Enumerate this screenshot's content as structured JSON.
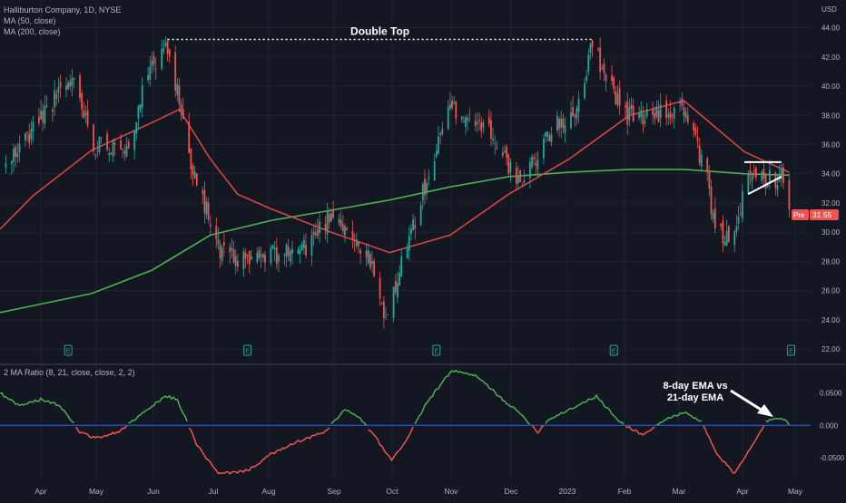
{
  "header": {
    "symbol_line": "Halliburton Company, 1D, NYSE",
    "ma50_label": "MA (50, close)",
    "ma200_label": "MA (200, close)",
    "currency": "USD"
  },
  "indicator": {
    "label": "2 MA Ratio (8, 21, close, close, 2, 2)"
  },
  "price_badge": {
    "prefix": "Pre",
    "value": "31.55"
  },
  "annotations": {
    "double_top": "Double Top",
    "ema_note_line1": "8-day EMA vs",
    "ema_note_line2": "21-day EMA"
  },
  "colors": {
    "background": "#131722",
    "grid": "#1f2330",
    "up": "#26a69a",
    "down": "#ef5350",
    "ma50": "#d84444",
    "ma200": "#4caf50",
    "ratio_pos": "#4caf50",
    "ratio_neg": "#f05252",
    "zero_line": "#2962ff"
  },
  "chart_data": [
    {
      "type": "candlestick",
      "title": "Halliburton Company, 1D, NYSE",
      "x_tick_labels": [
        "Apr",
        "May",
        "Jun",
        "Jul",
        "Aug",
        "Sep",
        "Oct",
        "Nov",
        "Dec",
        "2023",
        "Feb",
        "Mar",
        "Apr",
        "May"
      ],
      "y_tick_labels": [
        "22.00",
        "24.00",
        "26.00",
        "28.00",
        "30.00",
        "32.00",
        "34.00",
        "36.00",
        "38.00",
        "40.00",
        "42.00",
        "44.00"
      ],
      "ylim": [
        21.2,
        45.4
      ],
      "grid": true,
      "close_key_points": [
        {
          "date": "2022-03-18",
          "value": 34.5
        },
        {
          "date": "2022-03-29",
          "value": 36.5
        },
        {
          "date": "2022-04-08",
          "value": 38.5
        },
        {
          "date": "2022-04-22",
          "value": 40.5
        },
        {
          "date": "2022-05-02",
          "value": 36.0
        },
        {
          "date": "2022-05-20",
          "value": 36.0
        },
        {
          "date": "2022-05-27",
          "value": 39.5
        },
        {
          "date": "2022-06-08",
          "value": 43.5
        },
        {
          "date": "2022-06-21",
          "value": 35.0
        },
        {
          "date": "2022-07-06",
          "value": 28.5
        },
        {
          "date": "2022-07-18",
          "value": 28.0
        },
        {
          "date": "2022-08-04",
          "value": 28.5
        },
        {
          "date": "2022-08-19",
          "value": 29.0
        },
        {
          "date": "2022-09-02",
          "value": 31.5
        },
        {
          "date": "2022-09-21",
          "value": 28.0
        },
        {
          "date": "2022-09-29",
          "value": 23.8
        },
        {
          "date": "2022-10-04",
          "value": 26.5
        },
        {
          "date": "2022-10-20",
          "value": 33.5
        },
        {
          "date": "2022-11-01",
          "value": 38.5
        },
        {
          "date": "2022-11-22",
          "value": 37.0
        },
        {
          "date": "2022-12-07",
          "value": 33.0
        },
        {
          "date": "2022-12-20",
          "value": 36.5
        },
        {
          "date": "2023-01-05",
          "value": 38.5
        },
        {
          "date": "2023-01-13",
          "value": 42.8
        },
        {
          "date": "2023-01-30",
          "value": 38.0
        },
        {
          "date": "2023-02-15",
          "value": 38.0
        },
        {
          "date": "2023-03-01",
          "value": 38.5
        },
        {
          "date": "2023-03-13",
          "value": 33.5
        },
        {
          "date": "2023-03-17",
          "value": 30.0
        },
        {
          "date": "2023-03-24",
          "value": 29.5
        },
        {
          "date": "2023-04-04",
          "value": 33.7
        },
        {
          "date": "2023-04-20",
          "value": 33.7
        },
        {
          "date": "2023-04-24",
          "value": 31.55
        }
      ],
      "series": [
        {
          "name": "MA (50, close)",
          "points": [
            {
              "date": "2022-03-15",
              "value": 30.2
            },
            {
              "date": "2022-04-01",
              "value": 32.5
            },
            {
              "date": "2022-05-01",
              "value": 35.6
            },
            {
              "date": "2022-06-01",
              "value": 37.5
            },
            {
              "date": "2022-06-15",
              "value": 38.4
            },
            {
              "date": "2022-07-01",
              "value": 35.0
            },
            {
              "date": "2022-07-15",
              "value": 32.6
            },
            {
              "date": "2022-08-01",
              "value": 31.6
            },
            {
              "date": "2022-09-01",
              "value": 30.0
            },
            {
              "date": "2022-10-01",
              "value": 28.6
            },
            {
              "date": "2022-11-01",
              "value": 29.8
            },
            {
              "date": "2022-12-01",
              "value": 32.6
            },
            {
              "date": "2023-01-01",
              "value": 35.0
            },
            {
              "date": "2023-02-01",
              "value": 38.0
            },
            {
              "date": "2023-03-01",
              "value": 39.0
            },
            {
              "date": "2023-04-01",
              "value": 35.5
            },
            {
              "date": "2023-04-24",
              "value": 34.1
            }
          ]
        },
        {
          "name": "MA (200, close)",
          "points": [
            {
              "date": "2022-03-15",
              "value": 24.5
            },
            {
              "date": "2022-05-01",
              "value": 25.8
            },
            {
              "date": "2022-06-01",
              "value": 27.4
            },
            {
              "date": "2022-07-01",
              "value": 29.8
            },
            {
              "date": "2022-08-01",
              "value": 30.8
            },
            {
              "date": "2022-09-01",
              "value": 31.5
            },
            {
              "date": "2022-10-01",
              "value": 32.2
            },
            {
              "date": "2022-11-01",
              "value": 33.1
            },
            {
              "date": "2022-12-01",
              "value": 33.8
            },
            {
              "date": "2023-01-01",
              "value": 34.1
            },
            {
              "date": "2023-02-01",
              "value": 34.3
            },
            {
              "date": "2023-03-01",
              "value": 34.3
            },
            {
              "date": "2023-04-01",
              "value": 34.0
            },
            {
              "date": "2023-04-24",
              "value": 33.9
            }
          ]
        }
      ],
      "annotations": [
        {
          "text": "Double Top",
          "from_date": "2022-06-09",
          "to_date": "2023-01-13",
          "level": 43.2
        },
        {
          "type": "triangle",
          "from_date": "2023-04-01",
          "to_date": "2023-04-20",
          "upper": 34.8,
          "lower_start": 32.6,
          "lower_end": 33.8
        }
      ],
      "earnings_markers": [
        "2022-04-19",
        "2022-07-20",
        "2022-10-25",
        "2023-01-24",
        "2023-04-25"
      ]
    },
    {
      "type": "line",
      "title": "2 MA Ratio (8, 21, close, close, 2, 2)",
      "y_tick_labels": [
        "0.0500",
        "0.000",
        "-0.0500"
      ],
      "ylim": [
        -0.085,
        0.09
      ],
      "zero_line": true,
      "series": [
        {
          "name": "",
          "points": [
            {
              "date": "2022-03-15",
              "value": 0.05
            },
            {
              "date": "2022-03-25",
              "value": 0.03
            },
            {
              "date": "2022-04-05",
              "value": 0.04
            },
            {
              "date": "2022-04-15",
              "value": 0.03
            },
            {
              "date": "2022-04-25",
              "value": -0.01
            },
            {
              "date": "2022-05-03",
              "value": -0.02
            },
            {
              "date": "2022-05-15",
              "value": -0.01
            },
            {
              "date": "2022-05-28",
              "value": 0.02
            },
            {
              "date": "2022-06-08",
              "value": 0.045
            },
            {
              "date": "2022-06-14",
              "value": 0.04
            },
            {
              "date": "2022-06-24",
              "value": -0.03
            },
            {
              "date": "2022-07-05",
              "value": -0.075
            },
            {
              "date": "2022-07-20",
              "value": -0.07
            },
            {
              "date": "2022-08-01",
              "value": -0.045
            },
            {
              "date": "2022-08-15",
              "value": -0.025
            },
            {
              "date": "2022-08-29",
              "value": -0.01
            },
            {
              "date": "2022-09-08",
              "value": 0.025
            },
            {
              "date": "2022-09-16",
              "value": 0.01
            },
            {
              "date": "2022-09-24",
              "value": -0.02
            },
            {
              "date": "2022-10-02",
              "value": -0.055
            },
            {
              "date": "2022-10-10",
              "value": -0.02
            },
            {
              "date": "2022-10-20",
              "value": 0.035
            },
            {
              "date": "2022-11-02",
              "value": 0.085
            },
            {
              "date": "2022-11-15",
              "value": 0.075
            },
            {
              "date": "2022-11-28",
              "value": 0.04
            },
            {
              "date": "2022-12-08",
              "value": 0.015
            },
            {
              "date": "2022-12-16",
              "value": -0.01
            },
            {
              "date": "2022-12-22",
              "value": 0.01
            },
            {
              "date": "2023-01-05",
              "value": 0.03
            },
            {
              "date": "2023-01-15",
              "value": 0.045
            },
            {
              "date": "2023-01-27",
              "value": 0.005
            },
            {
              "date": "2023-02-08",
              "value": -0.015
            },
            {
              "date": "2023-02-20",
              "value": 0.01
            },
            {
              "date": "2023-03-01",
              "value": 0.02
            },
            {
              "date": "2023-03-10",
              "value": 0.005
            },
            {
              "date": "2023-03-18",
              "value": -0.045
            },
            {
              "date": "2023-03-27",
              "value": -0.075
            },
            {
              "date": "2023-04-05",
              "value": -0.03
            },
            {
              "date": "2023-04-12",
              "value": 0.005
            },
            {
              "date": "2023-04-18",
              "value": 0.012
            },
            {
              "date": "2023-04-22",
              "value": 0.008
            },
            {
              "date": "2023-04-25",
              "value": 0.0
            }
          ]
        }
      ]
    }
  ]
}
